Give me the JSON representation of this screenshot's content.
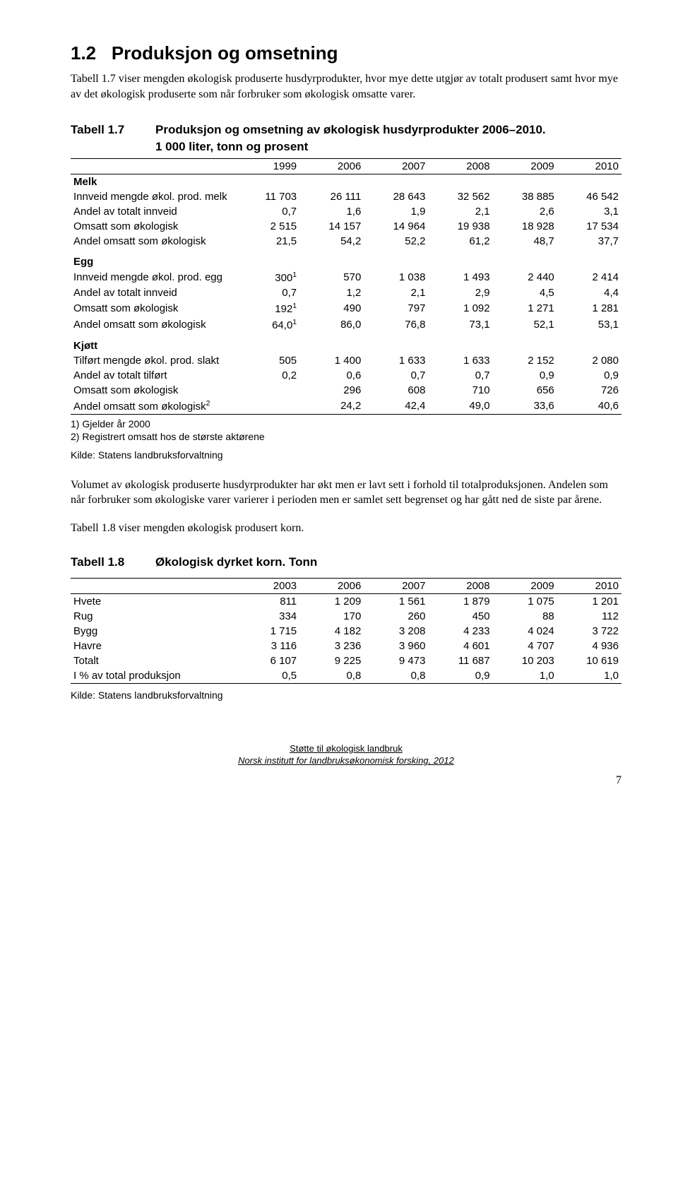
{
  "section": {
    "number": "1.2",
    "title": "Produksjon og omsetning",
    "intro": "Tabell 1.7 viser mengden økologisk produserte husdyrprodukter, hvor mye dette utgjør av totalt produsert samt hvor mye av det økologisk produserte som når forbruker som økologisk omsatte varer."
  },
  "table17": {
    "label": "Tabell 1.7",
    "title": "Produksjon og omsetning av økologisk husdyrprodukter 2006–2010.",
    "subtitle": "1 000 liter, tonn og prosent",
    "years": [
      "1999",
      "2006",
      "2007",
      "2008",
      "2009",
      "2010"
    ],
    "groups": [
      {
        "name": "Melk",
        "rows": [
          {
            "label": "Innveid mengde økol. prod. melk",
            "vals": [
              "11 703",
              "26 111",
              "28 643",
              "32 562",
              "38 885",
              "46 542"
            ]
          },
          {
            "label": "Andel av totalt innveid",
            "vals": [
              "0,7",
              "1,6",
              "1,9",
              "2,1",
              "2,6",
              "3,1"
            ]
          },
          {
            "label": "Omsatt som økologisk",
            "vals": [
              "2 515",
              "14 157",
              "14 964",
              "19 938",
              "18 928",
              "17 534"
            ]
          },
          {
            "label": "Andel omsatt som økologisk",
            "vals": [
              "21,5",
              "54,2",
              "52,2",
              "61,2",
              "48,7",
              "37,7"
            ]
          }
        ]
      },
      {
        "name": "Egg",
        "rows": [
          {
            "label": "Innveid mengde økol. prod. egg",
            "vals": [
              "300¹",
              "570",
              "1 038",
              "1 493",
              "2 440",
              "2 414"
            ]
          },
          {
            "label": "Andel av totalt innveid",
            "vals": [
              "0,7",
              "1,2",
              "2,1",
              "2,9",
              "4,5",
              "4,4"
            ]
          },
          {
            "label": "Omsatt som økologisk",
            "vals": [
              "192¹",
              "490",
              "797",
              "1 092",
              "1 271",
              "1 281"
            ]
          },
          {
            "label": "Andel omsatt som økologisk",
            "vals": [
              "64,0¹",
              "86,0",
              "76,8",
              "73,1",
              "52,1",
              "53,1"
            ]
          }
        ]
      },
      {
        "name": "Kjøtt",
        "rows": [
          {
            "label": "Tilført mengde økol. prod. slakt",
            "vals": [
              "505",
              "1 400",
              "1 633",
              "1 633",
              "2 152",
              "2 080"
            ]
          },
          {
            "label": "Andel av totalt tilført",
            "vals": [
              "0,2",
              "0,6",
              "0,7",
              "0,7",
              "0,9",
              "0,9"
            ]
          },
          {
            "label": "Omsatt som økologisk",
            "vals": [
              "",
              "296",
              "608",
              "710",
              "656",
              "726"
            ]
          },
          {
            "label": "Andel omsatt som økologisk²",
            "vals": [
              "",
              "24,2",
              "42,4",
              "49,0",
              "33,6",
              "40,6"
            ]
          }
        ]
      }
    ],
    "notes": [
      "1) Gjelder år 2000",
      "2) Registrert omsatt hos de største aktørene"
    ],
    "source": "Kilde: Statens landbruksforvaltning"
  },
  "mid_paras": [
    "Volumet av økologisk produserte husdyrprodukter har økt men er lavt sett i forhold til totalproduksjonen. Andelen som når forbruker som økologiske varer varierer i perioden men er samlet sett begrenset og har gått ned de siste par årene.",
    "Tabell 1.8 viser mengden økologisk produsert korn."
  ],
  "table18": {
    "label": "Tabell 1.8",
    "title": "Økologisk dyrket korn. Tonn",
    "years": [
      "2003",
      "2006",
      "2007",
      "2008",
      "2009",
      "2010"
    ],
    "rows": [
      {
        "label": "Hvete",
        "vals": [
          "811",
          "1 209",
          "1 561",
          "1 879",
          "1 075",
          "1 201"
        ]
      },
      {
        "label": "Rug",
        "vals": [
          "334",
          "170",
          "260",
          "450",
          "88",
          "112"
        ]
      },
      {
        "label": "Bygg",
        "vals": [
          "1 715",
          "4 182",
          "3 208",
          "4 233",
          "4 024",
          "3 722"
        ]
      },
      {
        "label": "Havre",
        "vals": [
          "3 116",
          "3 236",
          "3 960",
          "4 601",
          "4 707",
          "4 936"
        ]
      },
      {
        "label": "Totalt",
        "vals": [
          "6 107",
          "9 225",
          "9 473",
          "11 687",
          "10 203",
          "10 619"
        ]
      },
      {
        "label": "I % av total produksjon",
        "vals": [
          "0,5",
          "0,8",
          "0,8",
          "0,9",
          "1,0",
          "1,0"
        ]
      }
    ],
    "source": "Kilde: Statens landbruksforvaltning"
  },
  "footer": {
    "line1": "Støtte til økologisk landbruk",
    "line2": "Norsk institutt for landbruksøkonomisk forsking, 2012",
    "page": "7"
  }
}
